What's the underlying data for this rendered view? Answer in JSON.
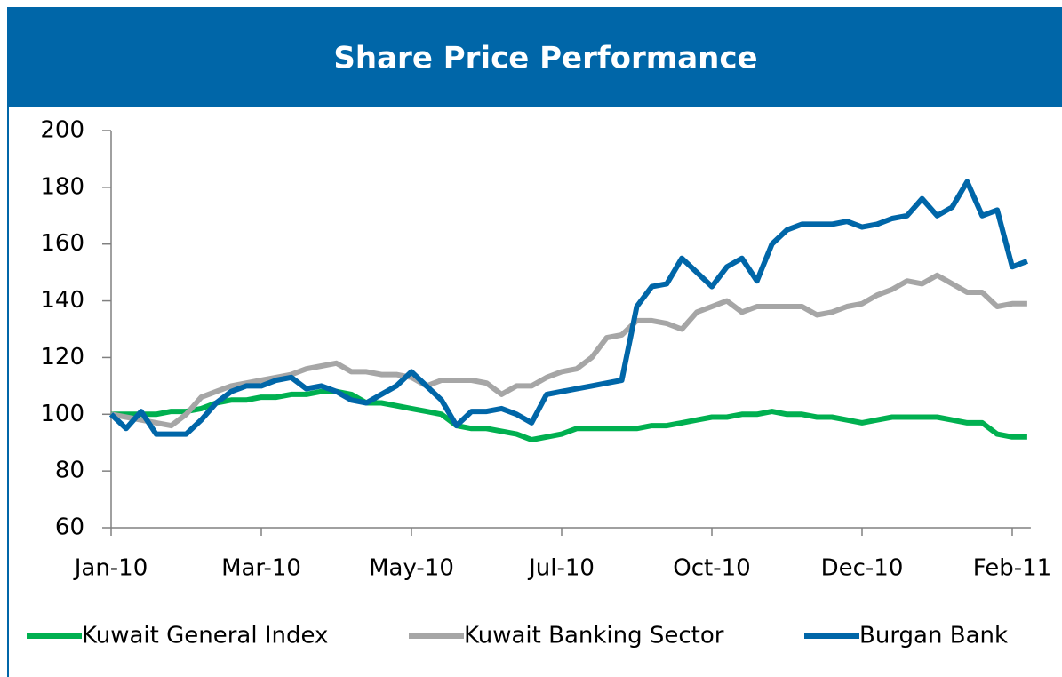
{
  "chart_data": {
    "type": "line",
    "title": "Share Price Performance",
    "categories": [
      "Jan-10",
      null,
      null,
      null,
      null,
      null,
      null,
      null,
      null,
      null,
      "Mar-10",
      null,
      null,
      null,
      null,
      null,
      null,
      null,
      null,
      null,
      "May-10",
      null,
      null,
      null,
      null,
      null,
      null,
      null,
      null,
      null,
      "Jul-10",
      null,
      null,
      null,
      null,
      null,
      null,
      null,
      null,
      null,
      "Oct-10",
      null,
      null,
      null,
      null,
      null,
      null,
      null,
      null,
      null,
      "Dec-10",
      null,
      null,
      null,
      null,
      null,
      null,
      null,
      null,
      null,
      "Feb-11",
      null
    ],
    "series": [
      {
        "name": "Kuwait General Index",
        "color": "#00b050",
        "values": [
          100,
          100,
          100,
          100,
          101,
          101,
          102,
          104,
          105,
          105,
          106,
          106,
          107,
          107,
          108,
          108,
          107,
          104,
          104,
          103,
          102,
          101,
          100,
          96,
          95,
          95,
          94,
          93,
          91,
          92,
          93,
          95,
          95,
          95,
          95,
          95,
          96,
          96,
          97,
          98,
          99,
          99,
          100,
          100,
          101,
          100,
          100,
          99,
          99,
          98,
          97,
          98,
          99,
          99,
          99,
          99,
          98,
          97,
          97,
          93,
          92,
          92
        ]
      },
      {
        "name": "Kuwait Banking Sector",
        "color": "#a6a6a6",
        "values": [
          100,
          99,
          98,
          97,
          96,
          100,
          106,
          108,
          110,
          111,
          112,
          113,
          114,
          116,
          117,
          118,
          115,
          115,
          114,
          114,
          113,
          110,
          112,
          112,
          112,
          111,
          107,
          110,
          110,
          113,
          115,
          116,
          120,
          127,
          128,
          133,
          133,
          132,
          130,
          136,
          138,
          140,
          136,
          138,
          138,
          138,
          138,
          135,
          136,
          138,
          139,
          142,
          144,
          147,
          146,
          149,
          146,
          143,
          143,
          138,
          139,
          139
        ]
      },
      {
        "name": "Burgan Bank",
        "color": "#0066a8",
        "values": [
          100,
          95,
          101,
          93,
          93,
          93,
          98,
          104,
          108,
          110,
          110,
          112,
          113,
          109,
          110,
          108,
          105,
          104,
          107,
          110,
          115,
          110,
          105,
          96,
          101,
          101,
          102,
          100,
          97,
          107,
          108,
          109,
          110,
          111,
          112,
          138,
          145,
          146,
          155,
          150,
          145,
          152,
          155,
          147,
          160,
          165,
          167,
          167,
          167,
          168,
          166,
          167,
          169,
          170,
          176,
          170,
          173,
          182,
          170,
          172,
          152,
          154
        ]
      }
    ],
    "ylim": [
      60,
      200
    ],
    "yticks": [
      60,
      80,
      100,
      120,
      140,
      160,
      180,
      200
    ],
    "legend": "bottom"
  }
}
